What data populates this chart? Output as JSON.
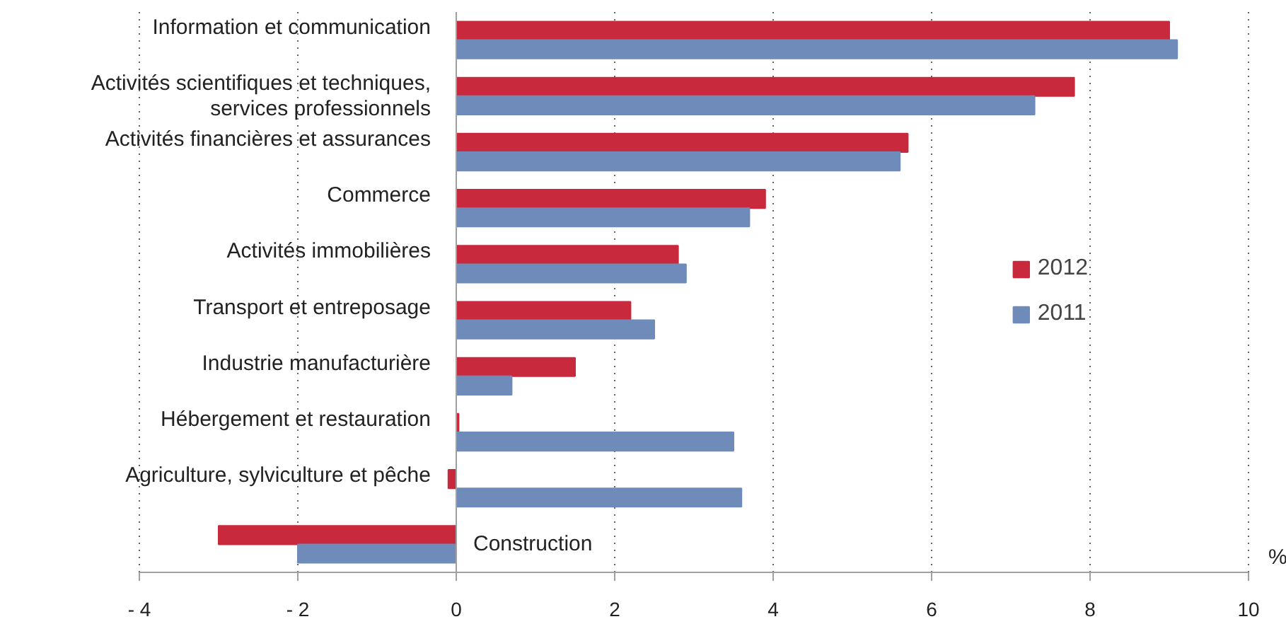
{
  "chart_data": {
    "type": "bar",
    "orientation": "horizontal",
    "xlabel": "%",
    "categories": [
      "Information et communication",
      "Activités scientifiques et techniques,\nservices professionnels",
      "Activités financières et assurances",
      "Commerce",
      "Activités immobilières",
      "Transport et entreposage",
      "Industrie manufacturière",
      "Hébergement et restauration",
      "Agriculture, sylviculture et pêche",
      "Construction"
    ],
    "series": [
      {
        "name": "2012",
        "color": "#c8293c",
        "values": [
          9.0,
          7.8,
          5.7,
          3.9,
          2.8,
          2.2,
          1.5,
          0.03,
          -0.1,
          -3.0
        ]
      },
      {
        "name": "2011",
        "color": "#6f8bb9",
        "values": [
          9.1,
          7.3,
          5.6,
          3.7,
          2.9,
          2.5,
          0.7,
          3.5,
          3.6,
          -2.0
        ]
      }
    ],
    "xlim": [
      -4,
      10
    ],
    "xticks": [
      {
        "value": -4,
        "label": "- 4"
      },
      {
        "value": -2,
        "label": "- 2"
      },
      0,
      2,
      4,
      6,
      8,
      10
    ],
    "grid": "x",
    "legend": "right"
  }
}
